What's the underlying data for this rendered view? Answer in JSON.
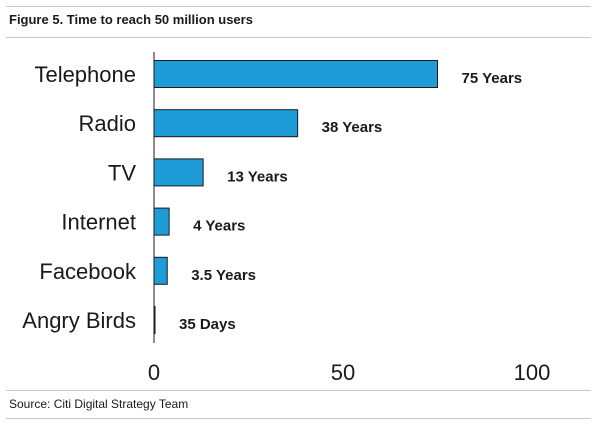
{
  "figure": {
    "title": "Figure 5. Time to reach 50 million users",
    "source": "Source: Citi Digital Strategy Team"
  },
  "chart_data": {
    "type": "bar",
    "orientation": "horizontal",
    "categories": [
      "Telephone",
      "Radio",
      "TV",
      "Internet",
      "Facebook",
      "Angry Birds"
    ],
    "values": [
      75,
      38,
      13,
      4,
      3.5,
      0.096
    ],
    "data_labels": [
      "75 Years",
      "38 Years",
      "13 Years",
      "4 Years",
      "3.5 Years",
      "35 Days"
    ],
    "xlim": [
      0,
      100
    ],
    "x_ticks": [
      0,
      50,
      100
    ],
    "x_tick_labels": [
      "0",
      "50",
      "100"
    ],
    "grid": false,
    "legend": "none",
    "bar_color": "#1e9cd7",
    "bar_edge_color": "#1a1a1a"
  }
}
